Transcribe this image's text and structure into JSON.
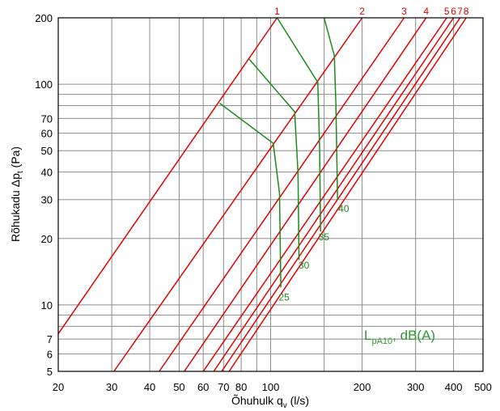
{
  "chart_data": {
    "type": "line",
    "xlabel": "Õhuhulk q",
    "xlabel_sub": "v",
    "xlabel_unit": " (l/s)",
    "ylabel": "Rõhukadu Δp",
    "ylabel_sub": "t",
    "ylabel_unit": " (Pa)",
    "x_scale": "log",
    "y_scale": "log",
    "xlim": [
      20,
      500
    ],
    "ylim": [
      5,
      200
    ],
    "grid": true,
    "x_ticks": [
      20,
      30,
      40,
      50,
      60,
      70,
      80,
      100,
      200,
      300,
      400,
      500
    ],
    "x_tick_labels": [
      "20",
      "30",
      "40",
      "50",
      "60",
      "70",
      "80",
      "100",
      "200",
      "300",
      "400",
      "500"
    ],
    "x_minor_grid": [
      90,
      150
    ],
    "y_ticks": [
      5,
      6,
      7,
      10,
      20,
      30,
      40,
      50,
      60,
      70,
      100,
      200
    ],
    "y_tick_labels": [
      "5",
      "6",
      "7",
      "10",
      "20",
      "30",
      "40",
      "50",
      "60",
      "70",
      "100",
      "200"
    ],
    "y_minor_grid": [
      8,
      9,
      80,
      90
    ],
    "pressure_lines": [
      {
        "label": "1",
        "points": [
          [
            20,
            7.4
          ],
          [
            105,
            200
          ]
        ]
      },
      {
        "label": "2",
        "points": [
          [
            30.5,
            5
          ],
          [
            200,
            200
          ]
        ]
      },
      {
        "label": "3",
        "points": [
          [
            43,
            5
          ],
          [
            275,
            200
          ]
        ]
      },
      {
        "label": "4",
        "points": [
          [
            52,
            5
          ],
          [
            325,
            200
          ]
        ]
      },
      {
        "label": "5",
        "points": [
          [
            60,
            5
          ],
          [
            380,
            200
          ]
        ]
      },
      {
        "label": "6",
        "points": [
          [
            65,
            5
          ],
          [
            400,
            200
          ]
        ]
      },
      {
        "label": "7",
        "points": [
          [
            69,
            5
          ],
          [
            420,
            200
          ]
        ]
      },
      {
        "label": "8",
        "points": [
          [
            73,
            5
          ],
          [
            440,
            200
          ]
        ]
      }
    ],
    "sound_curves": [
      {
        "label": "25",
        "label_at": [
          105,
          11.5
        ],
        "points": [
          [
            68,
            82
          ],
          [
            102,
            54
          ],
          [
            107,
            32
          ],
          [
            108,
            12
          ]
        ]
      },
      {
        "label": "30",
        "label_at": [
          122,
          16
        ],
        "points": [
          [
            85,
            130
          ],
          [
            120,
            75
          ],
          [
            123,
            40
          ],
          [
            124,
            16
          ]
        ]
      },
      {
        "label": "35",
        "label_at": [
          142,
          21.5
        ],
        "points": [
          [
            105,
            200
          ],
          [
            143,
            102
          ],
          [
            145,
            50
          ],
          [
            146,
            21.5
          ]
        ]
      },
      {
        "label": "40",
        "label_at": [
          165,
          29
        ],
        "points": [
          [
            150,
            200
          ],
          [
            162,
            135
          ],
          [
            164,
            80
          ],
          [
            166,
            30
          ]
        ]
      }
    ],
    "legend": {
      "text": "L",
      "sub": "pA10",
      "suffix": ", dB(A)",
      "position": "bottom-right"
    },
    "colors": {
      "pressure": "#e00000",
      "sound": "#1e8a1e",
      "grid": "#8c8c8c",
      "legend": "#2e9a2e"
    }
  }
}
